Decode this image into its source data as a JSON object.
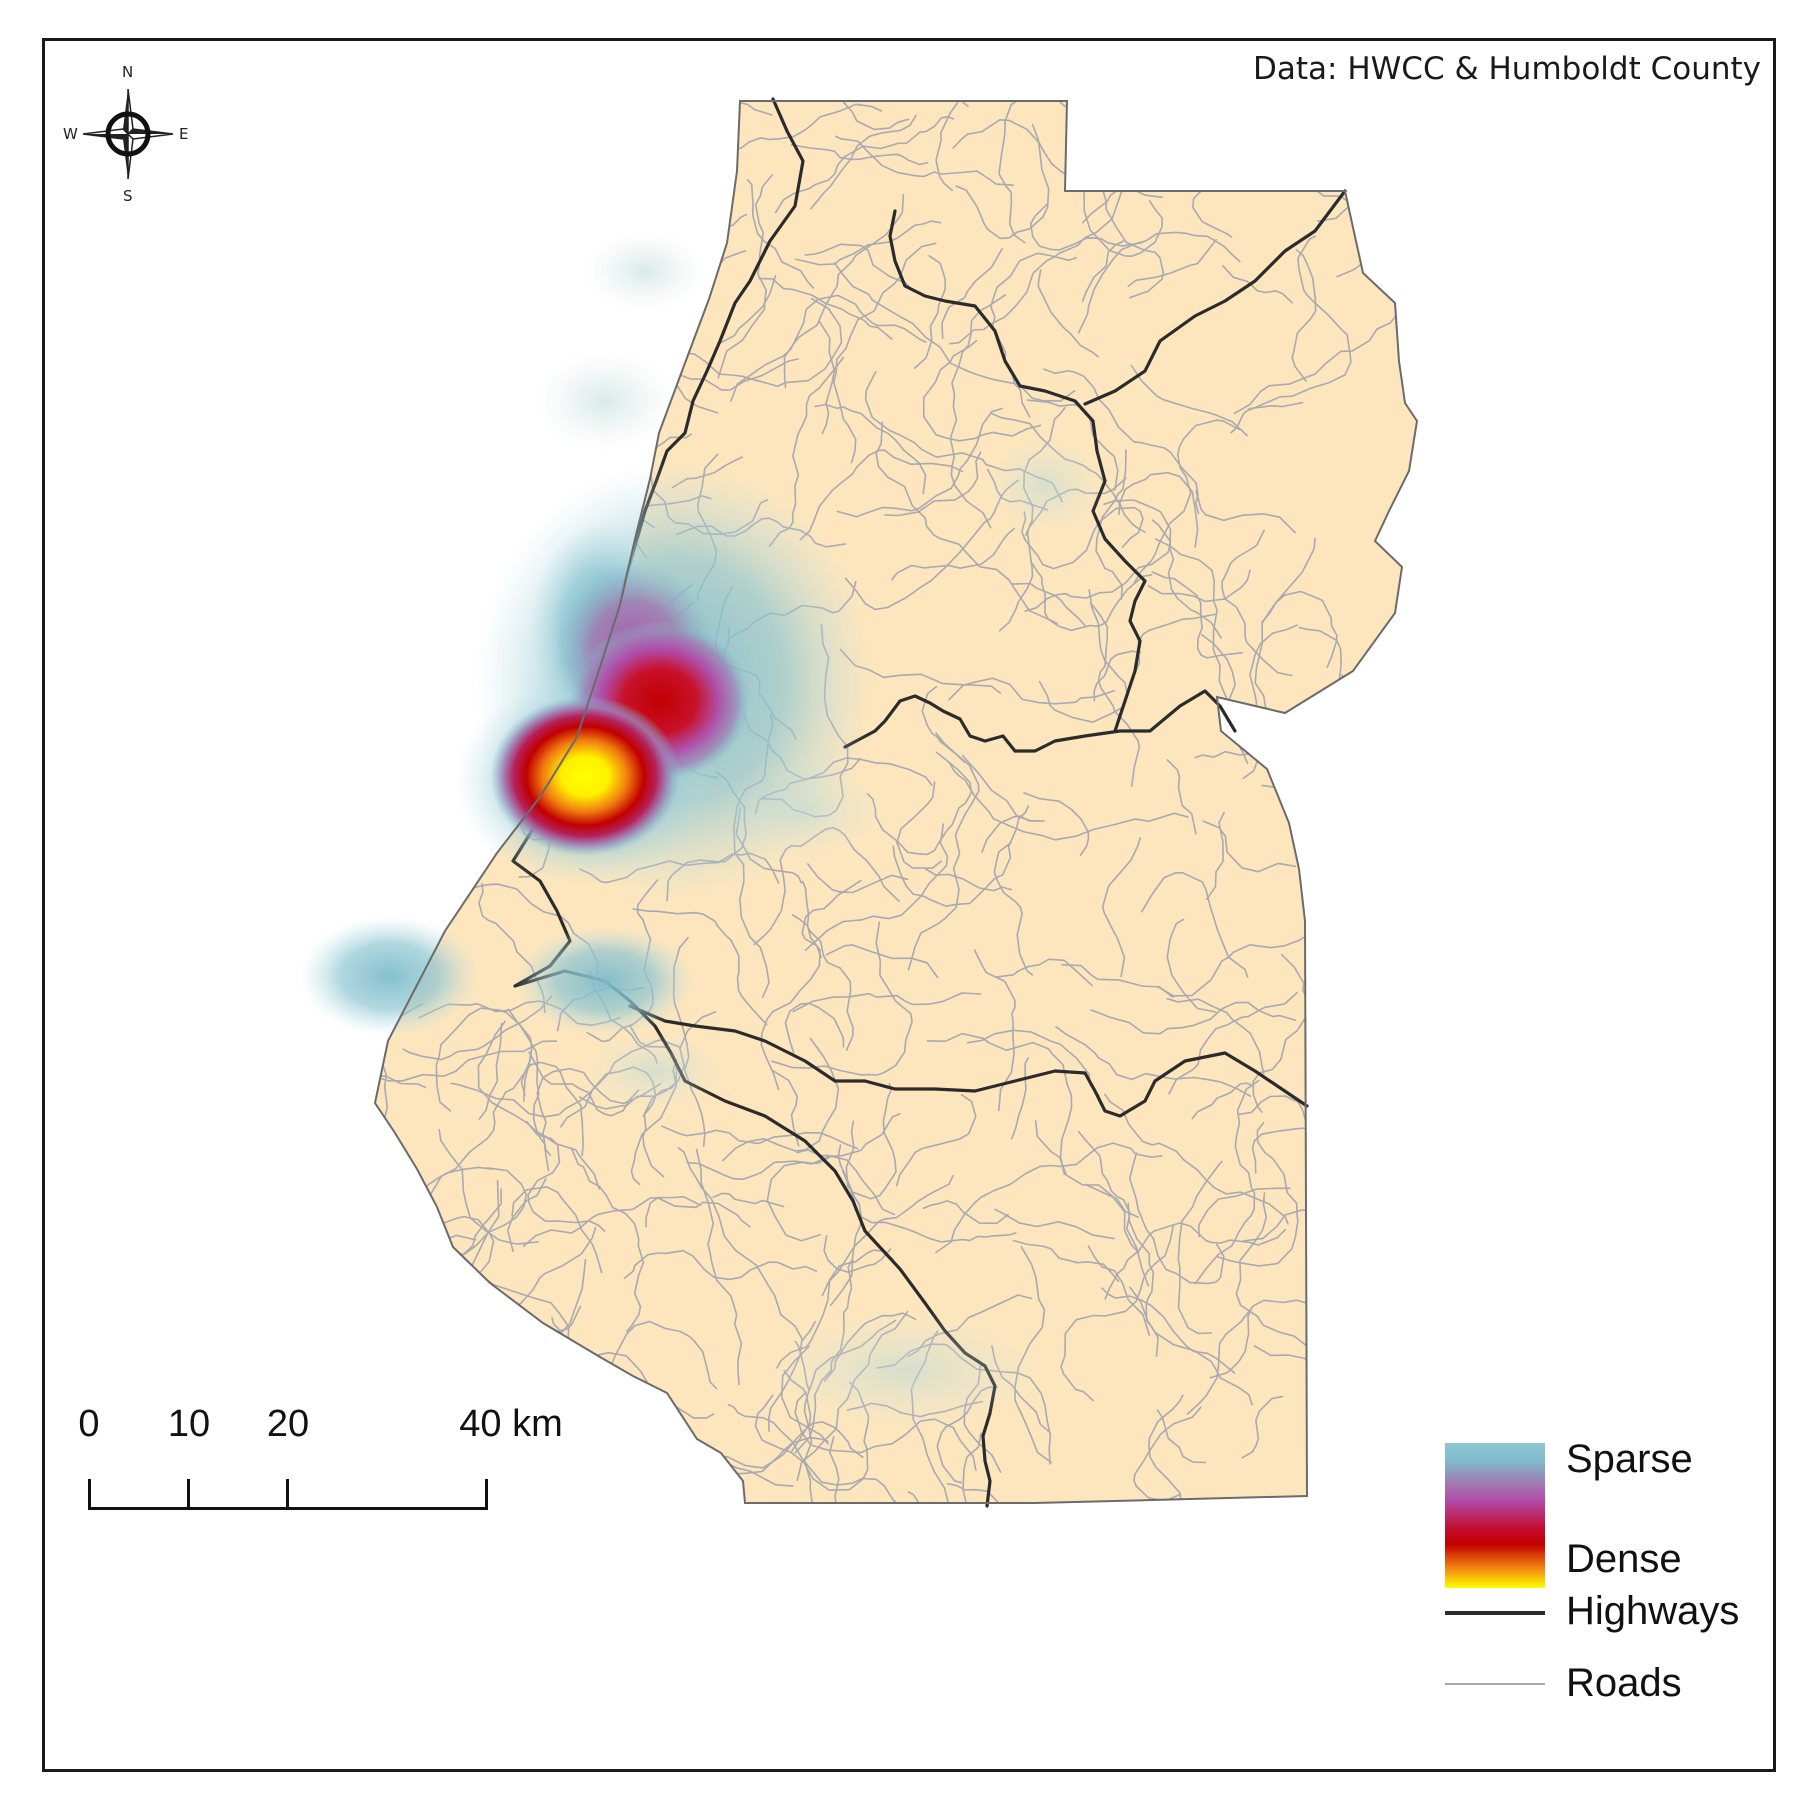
{
  "credit": "Data: HWCC & Humboldt County",
  "north_arrow": {
    "n": "N",
    "s": "S",
    "e": "E",
    "w": "W"
  },
  "scale_bar": {
    "labels": [
      "0",
      "10",
      "20",
      "40 km"
    ]
  },
  "legend": {
    "sparse": "Sparse",
    "dense": "Dense",
    "highways": "Highways",
    "roads": "Roads"
  },
  "colors": {
    "land": "#fde6bd",
    "border": "#6b6b6b",
    "highway": "#2b2b2b",
    "road": "#a9a9b0",
    "sparse": "#7fbccb",
    "mid": "#b04aa8",
    "dense_red": "#c10000",
    "dense_core": "#ffff00"
  }
}
